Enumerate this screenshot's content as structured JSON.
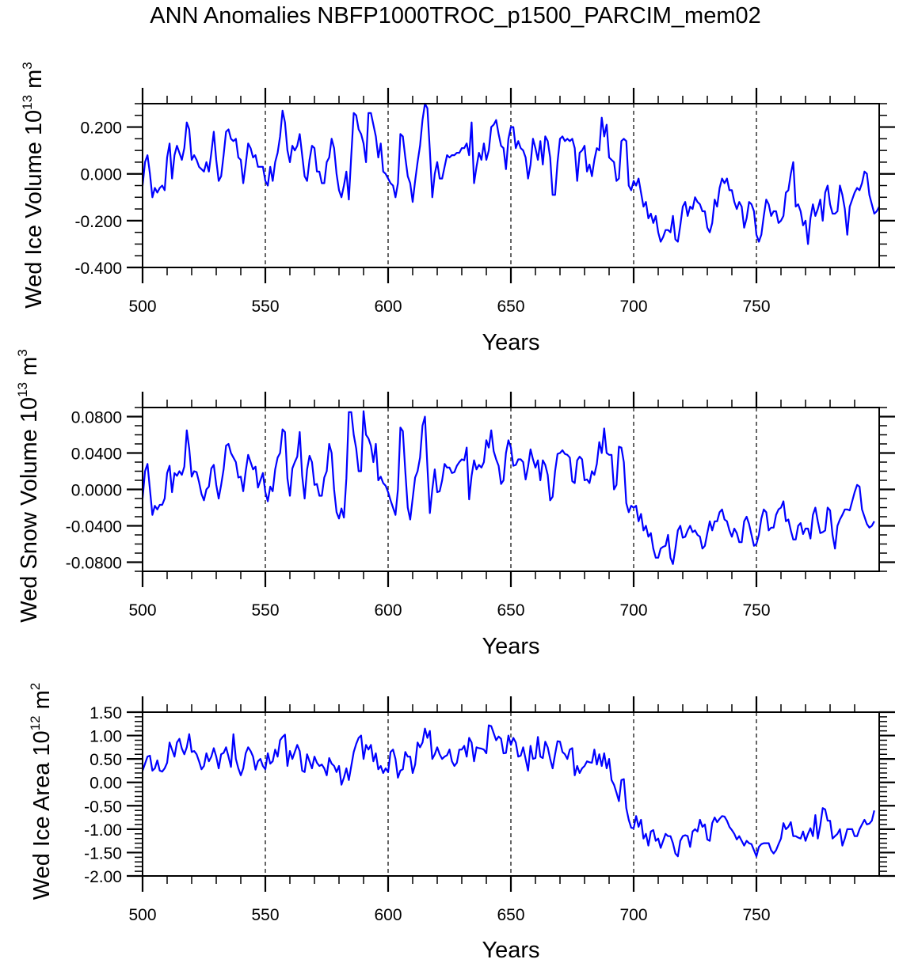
{
  "title": "ANN Anomalies NBFP1000TROC_p1500_PARCIM_mem02",
  "line_color": "#0000ff",
  "chart_data": [
    {
      "type": "line",
      "title": "",
      "xlabel": "Years",
      "ylabel": "Wed Ice Volume 10^13 m^3",
      "ylabel_main": "Wed Ice Volume 10",
      "ylabel_exp": "13",
      "ylabel_unit": " m",
      "ylabel_unit_exp": "3",
      "xlim": [
        500,
        800
      ],
      "ylim": [
        -0.4,
        0.3
      ],
      "xticks": [
        500,
        550,
        600,
        650,
        700,
        750
      ],
      "xtick_labels": [
        "500",
        "550",
        "600",
        "650",
        "700",
        "750"
      ],
      "x_minor_step": 10,
      "yticks": [
        0.2,
        0.0,
        -0.2,
        -0.4
      ],
      "ytick_labels": [
        "0.200",
        "0.000",
        "-0.200",
        "-0.400"
      ],
      "y_minor_step": 0.05,
      "vlines": [
        550,
        600,
        650,
        700,
        750
      ],
      "x_start": 500,
      "values": [
        -0.05,
        0.05,
        0.08,
        0.0,
        -0.1,
        -0.06,
        -0.08,
        -0.06,
        -0.05,
        -0.07,
        0.07,
        0.13,
        -0.02,
        0.08,
        0.12,
        0.09,
        0.06,
        0.11,
        0.22,
        0.19,
        0.06,
        0.08,
        0.06,
        0.03,
        0.02,
        0.01,
        0.05,
        0.01,
        0.09,
        0.18,
        0.06,
        -0.03,
        -0.01,
        0.08,
        0.18,
        0.19,
        0.15,
        0.14,
        0.15,
        0.07,
        0.06,
        -0.04,
        0.04,
        0.13,
        0.11,
        0.07,
        0.08,
        0.03,
        0.03,
        0.03,
        -0.03,
        -0.05,
        0.03,
        -0.03,
        0.05,
        0.09,
        0.16,
        0.27,
        0.22,
        0.1,
        0.05,
        0.12,
        0.1,
        0.12,
        0.17,
        0.08,
        -0.01,
        -0.03,
        0.06,
        0.12,
        0.11,
        0.01,
        0.01,
        -0.04,
        -0.04,
        0.05,
        0.07,
        0.15,
        0.11,
        0.0,
        -0.07,
        -0.1,
        -0.05,
        0.01,
        -0.11,
        0.08,
        0.26,
        0.25,
        0.19,
        0.17,
        0.13,
        0.05,
        0.26,
        0.26,
        0.21,
        0.16,
        0.07,
        0.13,
        0.01,
        0.0,
        -0.02,
        -0.04,
        -0.05,
        -0.1,
        -0.04,
        0.17,
        0.16,
        0.07,
        -0.01,
        -0.04,
        -0.12,
        -0.03,
        0.05,
        0.12,
        0.23,
        0.3,
        0.28,
        0.1,
        -0.1,
        0.0,
        0.05,
        -0.02,
        -0.02,
        0.03,
        0.08,
        0.07,
        0.08,
        0.08,
        0.09,
        0.09,
        0.11,
        0.11,
        0.13,
        0.08,
        0.22,
        -0.04,
        0.03,
        0.09,
        0.06,
        0.13,
        0.06,
        0.1,
        0.2,
        0.21,
        0.23,
        0.17,
        0.12,
        0.11,
        0.02,
        0.15,
        0.2,
        0.2,
        0.11,
        0.14,
        0.11,
        0.1,
        0.07,
        -0.02,
        0.04,
        0.15,
        0.11,
        0.06,
        0.14,
        0.04,
        0.16,
        0.14,
        0.07,
        -0.09,
        -0.09,
        0.05,
        0.15,
        0.16,
        0.14,
        0.15,
        0.14,
        0.15,
        0.11,
        -0.03,
        0.09,
        0.1,
        0.12,
        0.01,
        0.04,
        -0.01,
        0.06,
        0.11,
        0.1,
        0.24,
        0.16,
        0.21,
        0.07,
        0.06,
        0.05,
        -0.03,
        -0.02,
        0.14,
        0.15,
        0.14,
        -0.05,
        -0.07,
        -0.03,
        -0.05,
        -0.02,
        -0.08,
        -0.14,
        -0.12,
        -0.19,
        -0.17,
        -0.21,
        -0.18,
        -0.25,
        -0.29,
        -0.27,
        -0.24,
        -0.24,
        -0.25,
        -0.18,
        -0.28,
        -0.29,
        -0.22,
        -0.14,
        -0.12,
        -0.18,
        -0.14,
        -0.15,
        -0.1,
        -0.12,
        -0.13,
        -0.16,
        -0.16,
        -0.23,
        -0.25,
        -0.21,
        -0.11,
        -0.14,
        -0.06,
        -0.02,
        -0.04,
        -0.02,
        -0.07,
        -0.07,
        -0.12,
        -0.15,
        -0.12,
        -0.14,
        -0.23,
        -0.19,
        -0.12,
        -0.13,
        -0.16,
        -0.26,
        -0.29,
        -0.26,
        -0.18,
        -0.11,
        -0.13,
        -0.18,
        -0.16,
        -0.16,
        -0.21,
        -0.2,
        -0.18,
        -0.08,
        -0.07,
        0.0,
        0.05,
        -0.14,
        -0.13,
        -0.16,
        -0.22,
        -0.2,
        -0.3,
        -0.19,
        -0.13,
        -0.18,
        -0.15,
        -0.11,
        -0.2,
        -0.08,
        -0.05,
        -0.13,
        -0.17,
        -0.17,
        -0.16,
        -0.05,
        -0.09,
        -0.15,
        -0.26,
        -0.14,
        -0.11,
        -0.08,
        -0.06,
        -0.07,
        -0.04,
        0.01,
        0.0,
        -0.09,
        -0.13,
        -0.17,
        -0.16,
        -0.14
      ]
    },
    {
      "type": "line",
      "title": "",
      "xlabel": "Years",
      "ylabel": "Wed Snow Volume 10^13 m^3",
      "ylabel_main": "Wed Snow Volume 10",
      "ylabel_exp": "13",
      "ylabel_unit": " m",
      "ylabel_unit_exp": "3",
      "xlim": [
        500,
        800
      ],
      "ylim": [
        -0.09,
        0.09
      ],
      "xticks": [
        500,
        550,
        600,
        650,
        700,
        750
      ],
      "xtick_labels": [
        "500",
        "550",
        "600",
        "650",
        "700",
        "750"
      ],
      "x_minor_step": 10,
      "yticks": [
        0.08,
        0.04,
        0.0,
        -0.04,
        -0.08
      ],
      "ytick_labels": [
        "0.0800",
        "0.0400",
        "0.0000",
        "-0.0400",
        "-0.0800"
      ],
      "y_minor_step": 0.01,
      "vlines": [
        550,
        600,
        650,
        700,
        750
      ],
      "x_start": 500,
      "values": [
        -0.01,
        0.02,
        0.028,
        0.0,
        -0.028,
        -0.018,
        -0.022,
        -0.017,
        -0.017,
        -0.01,
        0.018,
        0.026,
        -0.003,
        0.018,
        0.015,
        0.02,
        0.016,
        0.025,
        0.065,
        0.045,
        0.014,
        0.02,
        0.019,
        0.008,
        -0.005,
        -0.012,
        0.0,
        0.003,
        0.023,
        0.027,
        0.005,
        -0.01,
        0.005,
        0.022,
        0.048,
        0.05,
        0.04,
        0.035,
        0.03,
        0.013,
        0.014,
        -0.002,
        0.02,
        0.038,
        0.03,
        0.022,
        0.025,
        0.002,
        0.01,
        0.018,
        -0.003,
        -0.013,
        0.003,
        -0.002,
        0.022,
        0.035,
        0.04,
        0.066,
        0.063,
        0.012,
        -0.007,
        0.023,
        0.03,
        0.036,
        0.063,
        0.015,
        -0.01,
        0.022,
        0.037,
        0.03,
        0.005,
        0.006,
        -0.007,
        -0.007,
        0.013,
        0.02,
        0.05,
        0.04,
        0.0,
        -0.025,
        -0.032,
        -0.021,
        -0.031,
        0.012,
        0.085,
        0.085,
        0.06,
        0.045,
        0.02,
        0.02,
        0.086,
        0.06,
        0.056,
        0.048,
        0.03,
        0.05,
        0.01,
        0.014,
        0.007,
        0.004,
        -0.003,
        -0.012,
        -0.02,
        -0.028,
        0.0,
        0.068,
        0.064,
        0.02,
        -0.02,
        -0.033,
        -0.01,
        0.013,
        0.02,
        0.035,
        0.07,
        0.08,
        0.025,
        -0.026,
        0.0,
        0.022,
        -0.003,
        -0.002,
        0.01,
        0.028,
        0.024,
        0.024,
        0.018,
        0.019,
        0.026,
        0.03,
        0.033,
        0.032,
        0.046,
        -0.011,
        0.015,
        0.032,
        0.022,
        0.027,
        0.024,
        0.03,
        0.054,
        0.046,
        0.065,
        0.042,
        0.033,
        0.026,
        0.006,
        0.01,
        0.04,
        0.054,
        0.046,
        0.026,
        0.027,
        0.033,
        0.033,
        0.03,
        0.011,
        0.025,
        0.044,
        0.033,
        0.024,
        0.032,
        0.01,
        0.032,
        0.027,
        0.016,
        -0.012,
        -0.008,
        0.02,
        0.039,
        0.04,
        0.043,
        0.039,
        0.038,
        0.035,
        0.009,
        0.007,
        0.032,
        0.036,
        0.033,
        0.01,
        0.011,
        0.007,
        0.02,
        0.016,
        0.028,
        0.052,
        0.04,
        0.067,
        0.04,
        0.038,
        0.038,
        0.0,
        0.005,
        0.047,
        0.046,
        0.03,
        -0.015,
        -0.025,
        -0.018,
        -0.02,
        -0.018,
        -0.035,
        -0.027,
        -0.045,
        -0.04,
        -0.052,
        -0.048,
        -0.065,
        -0.075,
        -0.075,
        -0.065,
        -0.063,
        -0.062,
        -0.05,
        -0.075,
        -0.082,
        -0.065,
        -0.045,
        -0.04,
        -0.053,
        -0.052,
        -0.045,
        -0.04,
        -0.047,
        -0.045,
        -0.05,
        -0.052,
        -0.065,
        -0.062,
        -0.048,
        -0.035,
        -0.045,
        -0.035,
        -0.035,
        -0.025,
        -0.022,
        -0.033,
        -0.035,
        -0.045,
        -0.052,
        -0.043,
        -0.048,
        -0.058,
        -0.058,
        -0.035,
        -0.03,
        -0.038,
        -0.05,
        -0.062,
        -0.06,
        -0.05,
        -0.032,
        -0.022,
        -0.025,
        -0.045,
        -0.042,
        -0.042,
        -0.028,
        -0.022,
        -0.02,
        -0.013,
        -0.035,
        -0.033,
        -0.045,
        -0.055,
        -0.055,
        -0.04,
        -0.037,
        -0.049,
        -0.043,
        -0.043,
        -0.054,
        -0.028,
        -0.02,
        -0.035,
        -0.048,
        -0.047,
        -0.045,
        -0.02,
        -0.023,
        -0.05,
        -0.065,
        -0.04,
        -0.033,
        -0.028,
        -0.022,
        -0.022,
        -0.023,
        -0.013,
        -0.003,
        0.005,
        0.003,
        -0.022,
        -0.03,
        -0.038,
        -0.042,
        -0.04,
        -0.035
      ]
    },
    {
      "type": "line",
      "title": "",
      "xlabel": "Years",
      "ylabel": "Wed Ice Area 10^12 m^2",
      "ylabel_main": "Wed Ice Area 10",
      "ylabel_exp": "12",
      "ylabel_unit": " m",
      "ylabel_unit_exp": "2",
      "xlim": [
        500,
        800
      ],
      "ylim": [
        -2.0,
        1.5
      ],
      "xticks": [
        500,
        550,
        600,
        650,
        700,
        750
      ],
      "xtick_labels": [
        "500",
        "550",
        "600",
        "650",
        "700",
        "750"
      ],
      "x_minor_step": 10,
      "yticks": [
        1.5,
        1.0,
        0.5,
        0.0,
        -0.5,
        -1.0,
        -1.5,
        -2.0
      ],
      "ytick_labels": [
        "1.50",
        "1.00",
        "0.50",
        "0.00",
        "-0.50",
        "-1.00",
        "-1.50",
        "-2.00"
      ],
      "y_minor_step": 0.1,
      "vlines": [
        550,
        600,
        650,
        700,
        750
      ],
      "x_start": 500,
      "values": [
        0.25,
        0.4,
        0.55,
        0.57,
        0.25,
        0.3,
        0.47,
        0.25,
        0.23,
        0.3,
        0.42,
        0.85,
        0.7,
        0.55,
        0.85,
        0.93,
        0.72,
        0.6,
        0.75,
        1.03,
        0.65,
        0.67,
        0.6,
        0.45,
        0.28,
        0.35,
        0.62,
        0.45,
        0.55,
        0.73,
        0.55,
        0.3,
        0.6,
        0.63,
        0.75,
        0.55,
        0.33,
        1.03,
        0.5,
        0.3,
        0.15,
        0.3,
        0.62,
        0.75,
        0.67,
        0.55,
        0.27,
        0.45,
        0.5,
        0.35,
        0.28,
        0.62,
        0.4,
        0.45,
        0.7,
        0.55,
        0.9,
        0.97,
        1.02,
        0.35,
        0.67,
        0.5,
        0.65,
        0.8,
        0.67,
        0.25,
        0.22,
        0.6,
        0.45,
        0.3,
        0.55,
        0.42,
        0.35,
        0.38,
        0.3,
        0.15,
        0.52,
        0.4,
        0.35,
        0.22,
        0.35,
        -0.05,
        0.1,
        0.3,
        0.05,
        0.35,
        0.65,
        0.82,
        0.95,
        1.0,
        0.5,
        0.8,
        0.7,
        0.8,
        0.45,
        0.62,
        0.28,
        0.35,
        0.2,
        0.3,
        0.22,
        0.65,
        0.7,
        0.5,
        0.1,
        0.25,
        0.28,
        0.65,
        0.55,
        0.55,
        0.2,
        0.38,
        0.85,
        0.75,
        0.85,
        1.15,
        0.95,
        1.1,
        0.5,
        0.6,
        0.75,
        0.6,
        0.5,
        0.55,
        0.58,
        0.7,
        0.45,
        0.35,
        0.42,
        0.7,
        0.7,
        0.78,
        0.55,
        0.95,
        0.85,
        0.45,
        0.75,
        0.73,
        0.72,
        0.7,
        0.62,
        1.22,
        1.2,
        1.05,
        0.9,
        0.98,
        0.93,
        0.62,
        0.63,
        1.0,
        0.8,
        0.95,
        0.85,
        0.55,
        0.57,
        0.75,
        0.5,
        0.25,
        0.78,
        0.5,
        0.52,
        0.97,
        0.55,
        0.52,
        0.87,
        0.75,
        0.5,
        0.3,
        0.6,
        0.88,
        0.87,
        0.65,
        0.6,
        0.5,
        0.7,
        0.73,
        0.15,
        0.35,
        0.2,
        0.3,
        0.35,
        0.45,
        0.43,
        0.42,
        0.7,
        0.38,
        0.6,
        0.35,
        0.62,
        0.3,
        0.5,
        0.05,
        -0.05,
        -0.22,
        -0.4,
        0.05,
        0.07,
        -0.55,
        -0.8,
        -0.97,
        -0.98,
        -0.72,
        -0.95,
        -0.8,
        -1.2,
        -1.1,
        -1.35,
        -1.05,
        -1.02,
        -1.25,
        -1.2,
        -1.4,
        -1.25,
        -1.1,
        -1.15,
        -1.15,
        -1.3,
        -1.52,
        -1.58,
        -1.25,
        -1.15,
        -1.13,
        -1.15,
        -1.38,
        -1.05,
        -1.0,
        -1.05,
        -0.8,
        -0.95,
        -0.9,
        -1.22,
        -1.25,
        -0.87,
        -0.75,
        -0.85,
        -0.78,
        -0.72,
        -0.73,
        -0.82,
        -0.95,
        -1.02,
        -1.1,
        -1.22,
        -1.15,
        -1.25,
        -1.35,
        -1.25,
        -1.3,
        -1.32,
        -1.45,
        -1.58,
        -1.38,
        -1.32,
        -1.3,
        -1.3,
        -1.3,
        -1.45,
        -1.52,
        -1.45,
        -1.32,
        -1.2,
        -0.87,
        -1.0,
        -0.95,
        -0.85,
        -1.15,
        -1.15,
        -1.18,
        -1.2,
        -1.05,
        -1.25,
        -1.1,
        -0.98,
        -1.15,
        -0.7,
        -1.2,
        -0.92,
        -0.55,
        -0.58,
        -0.82,
        -0.82,
        -1.2,
        -1.15,
        -1.1,
        -1.0,
        -1.35,
        -1.2,
        -1.0,
        -1.0,
        -1.0,
        -1.15,
        -1.15,
        -1.0,
        -0.9,
        -0.8,
        -0.9,
        -0.88,
        -0.82,
        -0.6
      ]
    }
  ]
}
